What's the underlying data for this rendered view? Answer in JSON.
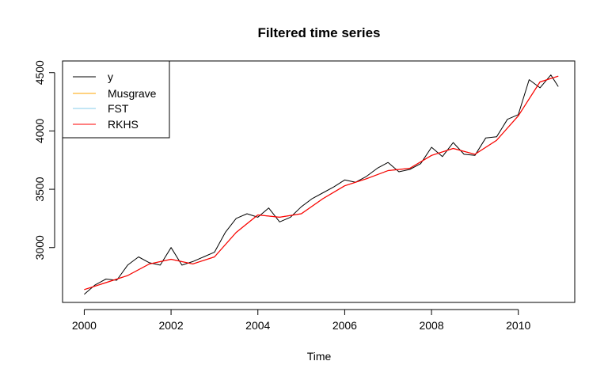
{
  "chart_data": {
    "type": "line",
    "title": "Filtered time series",
    "xlabel": "Time",
    "ylabel": "",
    "xlim": [
      1999.5,
      2011.3
    ],
    "ylim": [
      2530,
      4600
    ],
    "xticks": [
      2000,
      2002,
      2004,
      2006,
      2008,
      2010
    ],
    "xtick_labels": [
      "2000",
      "2002",
      "2004",
      "2006",
      "2008",
      "2010"
    ],
    "yticks": [
      3000,
      3500,
      4000,
      4500
    ],
    "ytick_labels": [
      "3000",
      "3500",
      "4000",
      "4500"
    ],
    "legend_position": "top-left",
    "colors": {
      "y": "#000000",
      "Musgrave": "#FFA500",
      "FST": "#87CEEB",
      "RKHS": "#FF0000"
    },
    "series": [
      {
        "name": "y",
        "color": "#000000",
        "x": [
          2000.0,
          2000.25,
          2000.5,
          2000.75,
          2001.0,
          2001.25,
          2001.5,
          2001.75,
          2002.0,
          2002.25,
          2002.5,
          2002.75,
          2003.0,
          2003.25,
          2003.5,
          2003.75,
          2004.0,
          2004.25,
          2004.5,
          2004.75,
          2005.0,
          2005.25,
          2005.5,
          2005.75,
          2006.0,
          2006.25,
          2006.5,
          2006.75,
          2007.0,
          2007.25,
          2007.5,
          2007.75,
          2008.0,
          2008.25,
          2008.5,
          2008.75,
          2009.0,
          2009.25,
          2009.5,
          2009.75,
          2010.0,
          2010.25,
          2010.5,
          2010.75,
          2010.92
        ],
        "values": [
          2600,
          2680,
          2730,
          2720,
          2850,
          2920,
          2870,
          2850,
          3000,
          2850,
          2880,
          2920,
          2960,
          3130,
          3250,
          3290,
          3260,
          3340,
          3220,
          3260,
          3350,
          3420,
          3470,
          3520,
          3580,
          3560,
          3610,
          3680,
          3730,
          3650,
          3670,
          3720,
          3860,
          3780,
          3900,
          3800,
          3790,
          3940,
          3950,
          4100,
          4140,
          4440,
          4370,
          4480,
          4380
        ]
      },
      {
        "name": "Musgrave",
        "color": "#FFA500",
        "x": [
          2000.0,
          2000.5,
          2001.0,
          2001.5,
          2002.0,
          2002.5,
          2003.0,
          2003.5,
          2004.0,
          2004.5,
          2005.0,
          2005.5,
          2006.0,
          2006.5,
          2007.0,
          2007.5,
          2008.0,
          2008.5,
          2009.0,
          2009.5,
          2010.0,
          2010.5,
          2010.92
        ],
        "values": [
          2640,
          2700,
          2760,
          2860,
          2900,
          2860,
          2920,
          3130,
          3280,
          3260,
          3290,
          3420,
          3530,
          3590,
          3660,
          3680,
          3790,
          3850,
          3800,
          3920,
          4130,
          4420,
          4470
        ]
      },
      {
        "name": "FST",
        "color": "#87CEEB",
        "x": [
          2000.0,
          2000.5,
          2001.0,
          2001.5,
          2002.0,
          2002.5,
          2003.0,
          2003.5,
          2004.0,
          2004.5,
          2005.0,
          2005.5,
          2006.0,
          2006.5,
          2007.0,
          2007.5,
          2008.0,
          2008.5,
          2009.0,
          2009.5,
          2010.0,
          2010.5,
          2010.92
        ],
        "values": [
          2640,
          2700,
          2760,
          2860,
          2900,
          2860,
          2920,
          3130,
          3280,
          3260,
          3290,
          3420,
          3530,
          3590,
          3660,
          3680,
          3790,
          3850,
          3800,
          3920,
          4130,
          4420,
          4470
        ]
      },
      {
        "name": "RKHS",
        "color": "#FF0000",
        "x": [
          2000.0,
          2000.5,
          2001.0,
          2001.5,
          2002.0,
          2002.5,
          2003.0,
          2003.5,
          2004.0,
          2004.5,
          2005.0,
          2005.5,
          2006.0,
          2006.5,
          2007.0,
          2007.5,
          2008.0,
          2008.5,
          2009.0,
          2009.5,
          2010.0,
          2010.5,
          2010.92
        ],
        "values": [
          2640,
          2700,
          2760,
          2860,
          2900,
          2860,
          2920,
          3130,
          3280,
          3260,
          3290,
          3420,
          3530,
          3590,
          3660,
          3680,
          3790,
          3850,
          3800,
          3920,
          4130,
          4420,
          4470
        ]
      }
    ]
  }
}
